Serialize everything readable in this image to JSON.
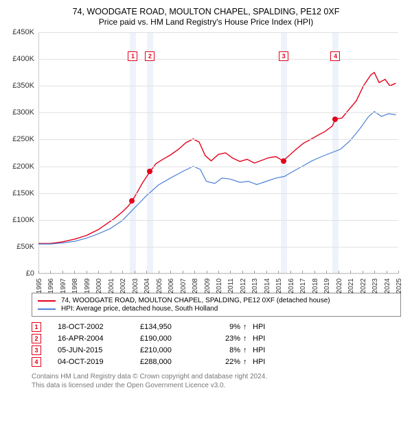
{
  "title_line1": "74, WOODGATE ROAD, MOULTON CHAPEL, SPALDING, PE12 0XF",
  "title_line2": "Price paid vs. HM Land Registry's House Price Index (HPI)",
  "chart": {
    "type": "line",
    "background_color": "#ffffff",
    "grid_color": "#e0e0e0",
    "band_color": "#eef3fb",
    "x_years": [
      1995,
      1996,
      1997,
      1998,
      1999,
      2000,
      2001,
      2002,
      2003,
      2004,
      2005,
      2006,
      2007,
      2008,
      2009,
      2010,
      2011,
      2012,
      2013,
      2014,
      2015,
      2016,
      2017,
      2018,
      2019,
      2020,
      2021,
      2022,
      2023,
      2024,
      2025
    ],
    "ylim": [
      0,
      450000
    ],
    "ytick_step": 50000,
    "y_labels": [
      "£0",
      "£50K",
      "£100K",
      "£150K",
      "£200K",
      "£250K",
      "£300K",
      "£350K",
      "£400K",
      "£450K"
    ],
    "series": [
      {
        "name": "property",
        "label": "74, WOODGATE ROAD, MOULTON CHAPEL, SPALDING, PE12 0XF (detached house)",
        "color": "#e3001b",
        "line_width": 1.4,
        "points": [
          [
            1995.0,
            56000
          ],
          [
            1996.0,
            56000
          ],
          [
            1997.0,
            59000
          ],
          [
            1998.0,
            64000
          ],
          [
            1999.0,
            71000
          ],
          [
            2000.0,
            82000
          ],
          [
            2000.7,
            93000
          ],
          [
            2001.3,
            102000
          ],
          [
            2002.0,
            115000
          ],
          [
            2002.5,
            126000
          ],
          [
            2002.8,
            134950
          ],
          [
            2003.2,
            150000
          ],
          [
            2003.7,
            170000
          ],
          [
            2004.3,
            190000
          ],
          [
            2004.8,
            205000
          ],
          [
            2005.3,
            212000
          ],
          [
            2006.0,
            221000
          ],
          [
            2006.7,
            232000
          ],
          [
            2007.3,
            244000
          ],
          [
            2007.9,
            251000
          ],
          [
            2008.4,
            245000
          ],
          [
            2008.9,
            220000
          ],
          [
            2009.4,
            210000
          ],
          [
            2010.0,
            222000
          ],
          [
            2010.6,
            225000
          ],
          [
            2011.2,
            215000
          ],
          [
            2011.8,
            209000
          ],
          [
            2012.4,
            213000
          ],
          [
            2013.0,
            206000
          ],
          [
            2013.6,
            211000
          ],
          [
            2014.2,
            216000
          ],
          [
            2014.8,
            218000
          ],
          [
            2015.4,
            210000
          ],
          [
            2015.9,
            220000
          ],
          [
            2016.5,
            232000
          ],
          [
            2017.1,
            243000
          ],
          [
            2017.7,
            250000
          ],
          [
            2018.3,
            258000
          ],
          [
            2018.9,
            265000
          ],
          [
            2019.5,
            275000
          ],
          [
            2019.76,
            288000
          ],
          [
            2020.3,
            290000
          ],
          [
            2020.9,
            306000
          ],
          [
            2021.5,
            322000
          ],
          [
            2022.1,
            350000
          ],
          [
            2022.7,
            370000
          ],
          [
            2023.0,
            375000
          ],
          [
            2023.4,
            356000
          ],
          [
            2023.9,
            362000
          ],
          [
            2024.3,
            350000
          ],
          [
            2024.8,
            355000
          ]
        ]
      },
      {
        "name": "hpi",
        "label": "HPI: Average price, detached house, South Holland",
        "color": "#4a80d6",
        "line_width": 1.2,
        "points": [
          [
            1995.0,
            55000
          ],
          [
            1996.0,
            55000
          ],
          [
            1997.0,
            57000
          ],
          [
            1998.0,
            60000
          ],
          [
            1999.0,
            66000
          ],
          [
            2000.0,
            74000
          ],
          [
            2001.0,
            84000
          ],
          [
            2002.0,
            99000
          ],
          [
            2003.0,
            122000
          ],
          [
            2004.0,
            145000
          ],
          [
            2005.0,
            165000
          ],
          [
            2006.0,
            178000
          ],
          [
            2007.0,
            190000
          ],
          [
            2007.9,
            200000
          ],
          [
            2008.5,
            194000
          ],
          [
            2009.0,
            172000
          ],
          [
            2009.7,
            168000
          ],
          [
            2010.3,
            178000
          ],
          [
            2011.0,
            176000
          ],
          [
            2011.8,
            170000
          ],
          [
            2012.5,
            172000
          ],
          [
            2013.2,
            166000
          ],
          [
            2014.0,
            172000
          ],
          [
            2014.8,
            178000
          ],
          [
            2015.5,
            181000
          ],
          [
            2016.2,
            190000
          ],
          [
            2017.0,
            200000
          ],
          [
            2017.8,
            210000
          ],
          [
            2018.6,
            218000
          ],
          [
            2019.4,
            225000
          ],
          [
            2020.2,
            232000
          ],
          [
            2021.0,
            248000
          ],
          [
            2021.8,
            270000
          ],
          [
            2022.5,
            292000
          ],
          [
            2023.0,
            302000
          ],
          [
            2023.6,
            293000
          ],
          [
            2024.2,
            298000
          ],
          [
            2024.8,
            296000
          ]
        ]
      }
    ],
    "bands": [
      {
        "from": 2002.6,
        "to": 2003.15
      },
      {
        "from": 2004.05,
        "to": 2004.55
      },
      {
        "from": 2015.2,
        "to": 2015.7
      },
      {
        "from": 2019.5,
        "to": 2020.0
      }
    ],
    "sale_markers": [
      {
        "n": 1,
        "year": 2002.8,
        "price": 134950,
        "box_year": 2002.87,
        "box_y": 405000
      },
      {
        "n": 2,
        "year": 2004.3,
        "price": 190000,
        "box_year": 2004.3,
        "box_y": 405000
      },
      {
        "n": 3,
        "year": 2015.43,
        "price": 210000,
        "box_year": 2015.45,
        "box_y": 405000
      },
      {
        "n": 4,
        "year": 2019.76,
        "price": 288000,
        "box_year": 2019.76,
        "box_y": 405000
      }
    ],
    "marker_border": "#e3001b",
    "marker_dot_color": "#e3001b"
  },
  "legend": {
    "rows": [
      {
        "color": "#e3001b",
        "label": "74, WOODGATE ROAD, MOULTON CHAPEL, SPALDING, PE12 0XF (detached house)"
      },
      {
        "color": "#4a80d6",
        "label": "HPI: Average price, detached house, South Holland"
      }
    ]
  },
  "sales_table": {
    "marker_border": "#e3001b",
    "rows": [
      {
        "n": "1",
        "date": "18-OCT-2002",
        "price": "£134,950",
        "pct": "9%",
        "arrow": "↑",
        "hpi": "HPI"
      },
      {
        "n": "2",
        "date": "16-APR-2004",
        "price": "£190,000",
        "pct": "23%",
        "arrow": "↑",
        "hpi": "HPI"
      },
      {
        "n": "3",
        "date": "05-JUN-2015",
        "price": "£210,000",
        "pct": "8%",
        "arrow": "↑",
        "hpi": "HPI"
      },
      {
        "n": "4",
        "date": "04-OCT-2019",
        "price": "£288,000",
        "pct": "22%",
        "arrow": "↑",
        "hpi": "HPI"
      }
    ]
  },
  "footer": {
    "line1": "Contains HM Land Registry data © Crown copyright and database right 2024.",
    "line2": "This data is licensed under the Open Government Licence v3.0."
  }
}
